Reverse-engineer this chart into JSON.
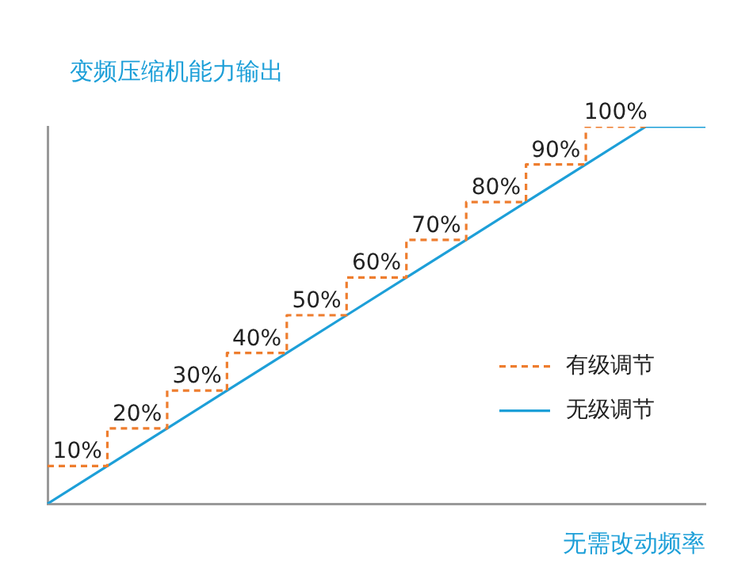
{
  "chart_data": {
    "type": "line",
    "ylabel": "变频压缩机能力输出",
    "xlabel": "无需改动频率",
    "categories": [
      null,
      null,
      null,
      null,
      null,
      null,
      null,
      null,
      null,
      null,
      null,
      null
    ],
    "legend": "right",
    "grid": false,
    "tick_labels": false,
    "series": [
      {
        "name": "有级调节",
        "type": "step",
        "color": "#ee7d2e",
        "line_style": "dashed",
        "values": [
          10,
          20,
          30,
          40,
          50,
          60,
          70,
          80,
          90,
          100,
          100,
          null
        ],
        "value_labels": [
          "10%",
          "20%",
          "30%",
          "40%",
          "50%",
          "60%",
          "70%",
          "80%",
          "90%",
          "100%",
          null,
          null
        ]
      },
      {
        "name": "无级调节",
        "color": "#1d9fd8",
        "line_style": "solid",
        "values": [
          0,
          10,
          20,
          30,
          40,
          50,
          60,
          70,
          80,
          90,
          100,
          100
        ]
      }
    ]
  }
}
